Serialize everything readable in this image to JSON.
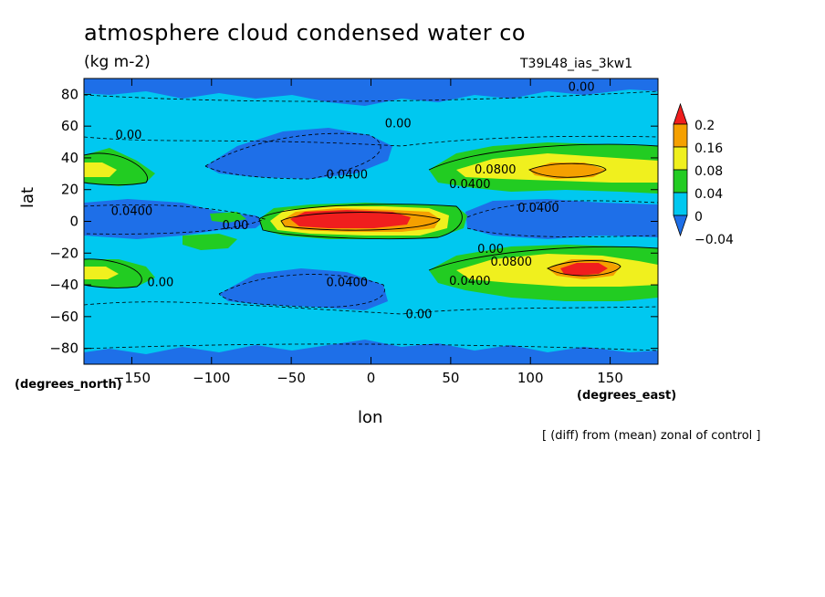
{
  "chart_data": {
    "type": "contour",
    "title": "atmosphere cloud condensed water co",
    "units": "(kg m-2)",
    "run_id": "T39L48_ias_3kw1",
    "xlabel": "lon",
    "ylabel": "lat",
    "x_unit_label": "(degrees_east)",
    "y_unit_label": "(degrees_north)",
    "xlim": [
      -180,
      180
    ],
    "ylim": [
      -90,
      90
    ],
    "x_ticks": [
      -150,
      -100,
      -50,
      0,
      50,
      100,
      150
    ],
    "y_ticks": [
      80,
      60,
      40,
      20,
      0,
      -20,
      -40,
      -60,
      -80
    ],
    "x_tick_labels": [
      "−150",
      "−100",
      "−50",
      "0",
      "50",
      "100",
      "150"
    ],
    "y_tick_labels": [
      "80",
      "60",
      "40",
      "20",
      "0",
      "−20",
      "−40",
      "−60",
      "−80"
    ],
    "colorbar": {
      "colors": [
        "#1e6fe8",
        "#00c8f0",
        "#22cc22",
        "#f0f01e",
        "#f5a000",
        "#f01e1e"
      ],
      "levels": [
        -0.04,
        0,
        0.04,
        0.08,
        0.16,
        0.2
      ],
      "labels": [
        "−0.04",
        "0",
        "0.04",
        "0.08",
        "0.16",
        "0.2"
      ]
    },
    "contour_labels": [
      {
        "text": "0.00",
        "lon": 132,
        "lat": 85
      },
      {
        "text": "0.00",
        "lon": 17,
        "lat": 62
      },
      {
        "text": "0.00",
        "lon": -152,
        "lat": 55
      },
      {
        "text": "0.0400",
        "lon": -15,
        "lat": 30
      },
      {
        "text": "0.0800",
        "lon": 78,
        "lat": 33
      },
      {
        "text": "0.0400",
        "lon": 62,
        "lat": 24
      },
      {
        "text": "0.0400",
        "lon": -150,
        "lat": 7
      },
      {
        "text": "0.0400",
        "lon": 105,
        "lat": 9
      },
      {
        "text": "0.00",
        "lon": -85,
        "lat": -2
      },
      {
        "text": "0.00",
        "lon": 75,
        "lat": -17
      },
      {
        "text": "0.0800",
        "lon": 88,
        "lat": -25
      },
      {
        "text": "0.0400",
        "lon": 62,
        "lat": -37
      },
      {
        "text": "0.0400",
        "lon": -15,
        "lat": -38
      },
      {
        "text": "0.00",
        "lon": 30,
        "lat": -58
      },
      {
        "text": "0.00",
        "lon": -132,
        "lat": -38
      }
    ],
    "footnote": "[ (diff) from (mean) zonal of control ]"
  }
}
